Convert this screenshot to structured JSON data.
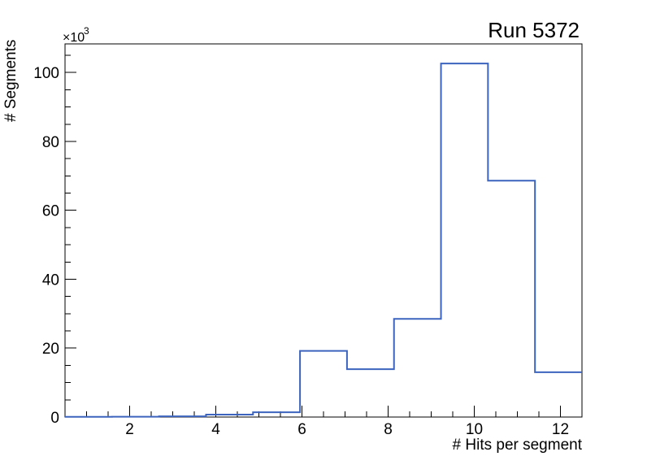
{
  "page": {
    "background_color": "#ffffff"
  },
  "chart_data": {
    "type": "bar",
    "subtype": "step-histogram",
    "title": "Run 5372",
    "xlabel": "# Hits per segment",
    "ylabel": "# Segments",
    "y_scale_label_base": "×10",
    "y_scale_label_exponent": "3",
    "y_unit_multiplier": 1000,
    "line_color": "#3c64be",
    "frame_color": "#000000",
    "xlim": [
      0.5,
      12.5
    ],
    "ylim": [
      0,
      108.3
    ],
    "x_major_ticks": [
      2,
      4,
      6,
      8,
      10,
      12
    ],
    "x_minor_step": 0.5,
    "y_major_ticks": [
      0,
      20,
      40,
      60,
      80,
      100
    ],
    "y_minor_step": 5,
    "grid": false,
    "legend": null,
    "bin_edges": [
      0.5,
      1.5909,
      2.6818,
      3.7727,
      4.8636,
      5.9545,
      7.0455,
      8.1364,
      9.2273,
      10.3182,
      11.4091,
      12.5
    ],
    "values_thousands": [
      0.05,
      0.1,
      0.2,
      0.7,
      1.4,
      19.2,
      13.9,
      28.5,
      102.6,
      68.6,
      13.0
    ]
  }
}
